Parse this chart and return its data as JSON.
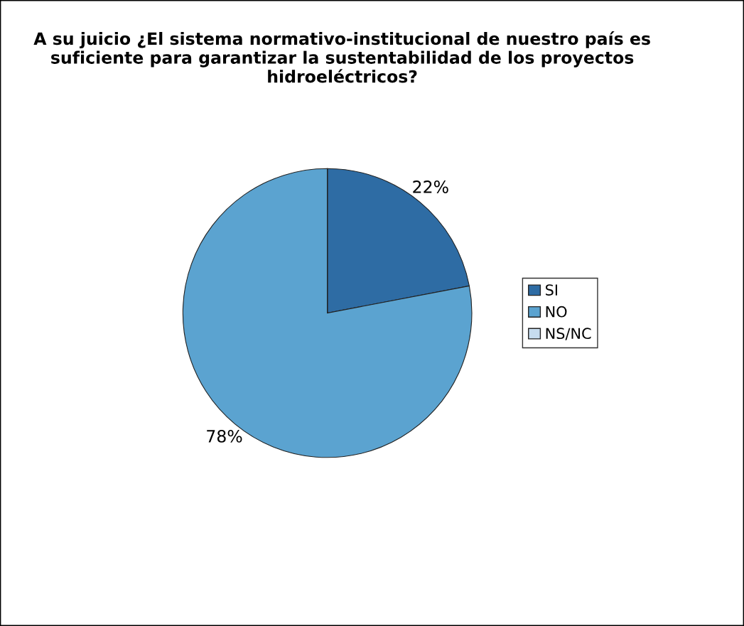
{
  "chart_data": {
    "type": "pie",
    "title": "A su juicio ¿El sistema normativo-institucional de nuestro país es suficiente para garantizar la sustentabilidad de los proyectos hidroeléctricos?",
    "categories": [
      "SI",
      "NO",
      "NS/NC"
    ],
    "values": [
      22,
      78,
      0
    ],
    "colors": [
      "#2e6ca4",
      "#5ba3d0",
      "#c6dcef"
    ],
    "value_labels": [
      "22%",
      "78%",
      null
    ],
    "legend": "right"
  }
}
